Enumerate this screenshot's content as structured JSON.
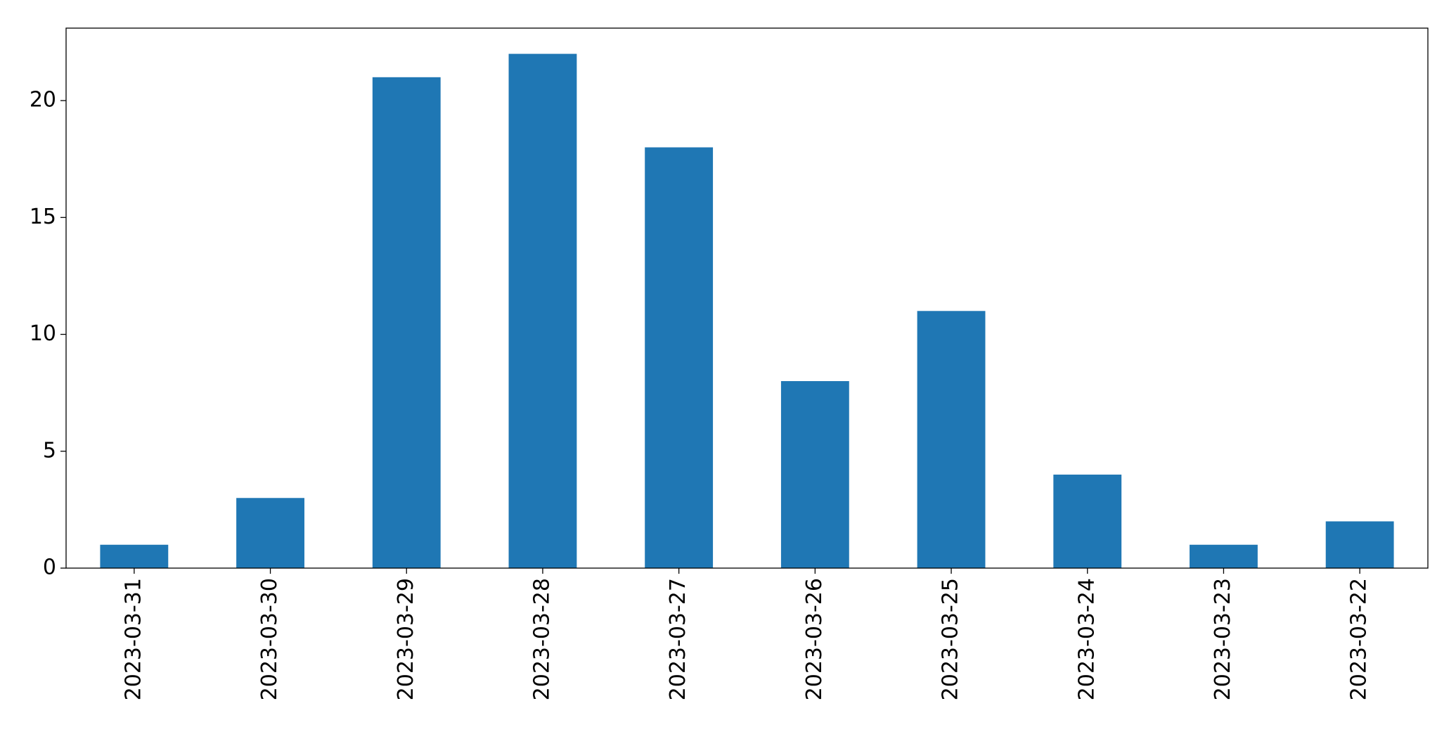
{
  "chart_data": {
    "type": "bar",
    "categories": [
      "2023-03-31",
      "2023-03-30",
      "2023-03-29",
      "2023-03-28",
      "2023-03-27",
      "2023-03-26",
      "2023-03-25",
      "2023-03-24",
      "2023-03-23",
      "2023-03-22"
    ],
    "values": [
      1,
      3,
      21,
      22,
      18,
      8,
      11,
      4,
      1,
      2
    ],
    "color": "#1f77b4",
    "ylim": [
      0,
      23.1
    ],
    "yticks": [
      0,
      5,
      10,
      15,
      20
    ],
    "grid": false
  }
}
